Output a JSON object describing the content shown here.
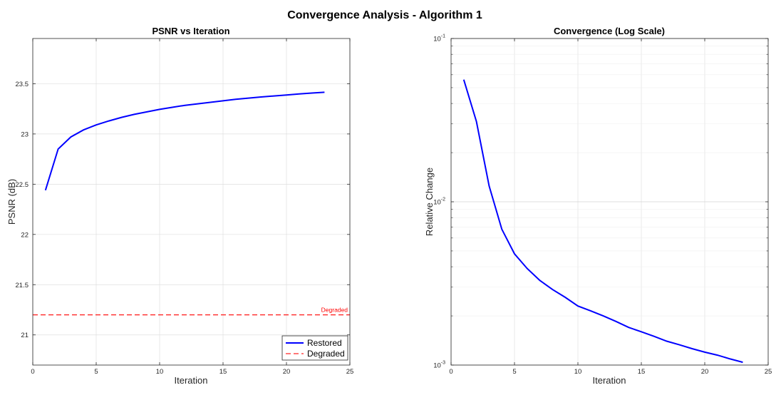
{
  "figure": {
    "suptitle": "Convergence Analysis - Algorithm 1"
  },
  "chart_data": [
    {
      "type": "line",
      "title": "PSNR vs Iteration",
      "xlabel": "Iteration",
      "ylabel": "PSNR (dB)",
      "xlim": [
        0,
        25
      ],
      "ylim": [
        20.7,
        23.95
      ],
      "grid": true,
      "xticks": [
        0,
        5,
        10,
        15,
        20,
        25
      ],
      "xtick_labels": [
        "0",
        "5",
        "10",
        "15",
        "20",
        "25"
      ],
      "yticks": [
        21,
        21.5,
        22,
        22.5,
        23,
        23.5
      ],
      "ytick_labels": [
        "21",
        "21.5",
        "22",
        "22.5",
        "23",
        "23.5"
      ],
      "series": [
        {
          "name": "Restored",
          "color": "#0000ff",
          "style": "solid",
          "x": [
            1,
            2,
            3,
            4,
            5,
            6,
            7,
            8,
            9,
            10,
            11,
            12,
            13,
            14,
            15,
            16,
            17,
            18,
            19,
            20,
            21,
            22,
            23
          ],
          "values": [
            22.44,
            22.85,
            22.97,
            23.04,
            23.09,
            23.13,
            23.165,
            23.195,
            23.22,
            23.245,
            23.265,
            23.285,
            23.3,
            23.315,
            23.33,
            23.345,
            23.357,
            23.368,
            23.378,
            23.388,
            23.398,
            23.407,
            23.415
          ]
        }
      ],
      "reference_line": {
        "name": "Degraded",
        "y": 21.2,
        "color": "#ff0000",
        "style": "dashed",
        "label": "Degraded"
      },
      "legend": {
        "location": "bottom-right",
        "entries": [
          "Restored",
          "Degraded"
        ]
      }
    },
    {
      "type": "line",
      "title": "Convergence (Log Scale)",
      "xlabel": "Iteration",
      "ylabel": "Relative Change",
      "yscale": "log",
      "xlim": [
        0,
        25
      ],
      "ylim": [
        0.001,
        0.1
      ],
      "grid": true,
      "xticks": [
        0,
        5,
        10,
        15,
        20,
        25
      ],
      "xtick_labels": [
        "0",
        "5",
        "10",
        "15",
        "20",
        "25"
      ],
      "yticks": [
        0.001,
        0.01,
        0.1
      ],
      "ytick_base": [
        "10",
        "10",
        "10"
      ],
      "ytick_exp": [
        "-3",
        "-2",
        "-1"
      ],
      "series": [
        {
          "name": "Relative Change",
          "color": "#0000ff",
          "style": "solid",
          "x": [
            1,
            2,
            3,
            4,
            5,
            6,
            7,
            8,
            9,
            10,
            11,
            12,
            13,
            14,
            15,
            16,
            17,
            18,
            19,
            20,
            21,
            22,
            23
          ],
          "values": [
            0.056,
            0.031,
            0.0125,
            0.0068,
            0.0048,
            0.0039,
            0.0033,
            0.0029,
            0.0026,
            0.0023,
            0.00215,
            0.002,
            0.00185,
            0.0017,
            0.0016,
            0.0015,
            0.0014,
            0.00133,
            0.00126,
            0.0012,
            0.00115,
            0.00109,
            0.00104
          ]
        }
      ]
    }
  ]
}
